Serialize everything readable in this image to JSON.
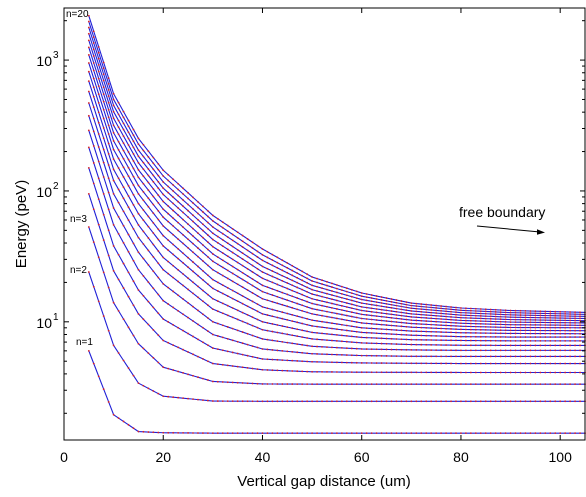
{
  "chart_data": {
    "type": "line",
    "title": "",
    "xlabel": "Vertical gap distance (um)",
    "ylabel": "Energy (peV)",
    "xlim": [
      0,
      105
    ],
    "ylim": [
      1.25,
      2500
    ],
    "y_scale": "log",
    "grid": false,
    "x_ticks": [
      "0",
      "20",
      "40",
      "60",
      "80",
      "100"
    ],
    "y_ticks": [
      {
        "base": "10",
        "exp": "1"
      },
      {
        "base": "10",
        "exp": "2"
      },
      {
        "base": "10",
        "exp": "3"
      }
    ],
    "level_labels": [
      "n=1",
      "n=2",
      "n=3",
      "n=20"
    ],
    "annotation": "free boundary",
    "colors": {
      "curve": "#1f1fd6",
      "marker": "#d6202a",
      "axis": "#000000"
    },
    "x": [
      5,
      10,
      15,
      20,
      30,
      40,
      50,
      60,
      70,
      80,
      90,
      105
    ],
    "series": [
      {
        "values": [
          6.0,
          1.95,
          1.45,
          1.42,
          1.41,
          1.41,
          1.41,
          1.41,
          1.41,
          1.41,
          1.41,
          1.41
        ]
      },
      {
        "values": [
          24.0,
          6.6,
          3.4,
          2.7,
          2.48,
          2.47,
          2.47,
          2.47,
          2.47,
          2.47,
          2.47,
          2.47
        ]
      },
      {
        "values": [
          53.0,
          14.0,
          6.8,
          4.5,
          3.5,
          3.35,
          3.34,
          3.34,
          3.34,
          3.34,
          3.34,
          3.34
        ]
      },
      {
        "values": [
          95.0,
          24.5,
          11.5,
          7.2,
          4.8,
          4.3,
          4.15,
          4.12,
          4.11,
          4.1,
          4.1,
          4.1
        ]
      },
      {
        "values": [
          150.0,
          38.0,
          17.5,
          10.5,
          6.3,
          5.2,
          4.95,
          4.85,
          4.82,
          4.8,
          4.8,
          4.8
        ]
      },
      {
        "values": [
          215.0,
          55.0,
          25.0,
          14.5,
          8.0,
          6.2,
          5.7,
          5.52,
          5.45,
          5.44,
          5.44,
          5.44
        ]
      },
      {
        "values": [
          290.0,
          74.0,
          34.0,
          19.5,
          10.0,
          7.4,
          6.5,
          6.2,
          6.1,
          6.05,
          6.05,
          6.05
        ]
      },
      {
        "values": [
          375.0,
          95.0,
          44.0,
          25.0,
          12.5,
          8.7,
          7.4,
          6.9,
          6.7,
          6.62,
          6.6,
          6.6
        ]
      },
      {
        "values": [
          470.0,
          120.0,
          55.0,
          31.0,
          15.0,
          10.0,
          8.3,
          7.6,
          7.3,
          7.2,
          7.15,
          7.15
        ]
      },
      {
        "values": [
          575.0,
          146.0,
          67.0,
          38.0,
          18.0,
          11.5,
          9.3,
          8.3,
          7.9,
          7.7,
          7.65,
          7.65
        ]
      },
      {
        "values": [
          690.0,
          175.0,
          80.0,
          45.5,
          21.0,
          13.0,
          10.3,
          9.0,
          8.5,
          8.25,
          8.15,
          8.1
        ]
      },
      {
        "values": [
          815.0,
          207.0,
          95.0,
          54.0,
          25.0,
          15.0,
          11.5,
          9.8,
          9.1,
          8.75,
          8.6,
          8.55
        ]
      },
      {
        "values": [
          950.0,
          241.0,
          110.0,
          63.0,
          29.0,
          17.0,
          12.6,
          10.6,
          9.7,
          9.25,
          9.05,
          9.0
        ]
      },
      {
        "values": [
          1095.0,
          278.0,
          127.0,
          72.5,
          33.0,
          19.0,
          13.8,
          11.4,
          10.3,
          9.75,
          9.5,
          9.4
        ]
      },
      {
        "values": [
          1250.0,
          317.0,
          145.0,
          83.0,
          37.5,
          21.5,
          15.0,
          12.2,
          10.9,
          10.25,
          9.95,
          9.8
        ]
      },
      {
        "values": [
          1415.0,
          359.0,
          164.0,
          94.0,
          42.5,
          24.0,
          16.3,
          13.0,
          11.5,
          10.75,
          10.4,
          10.2
        ]
      },
      {
        "values": [
          1590.0,
          403.0,
          184.0,
          105.0,
          47.5,
          26.5,
          17.6,
          13.9,
          12.1,
          11.25,
          10.85,
          10.6
        ]
      },
      {
        "values": [
          1775.0,
          450.0,
          205.0,
          117.0,
          53.0,
          29.5,
          19.0,
          14.8,
          12.7,
          11.75,
          11.3,
          11.0
        ]
      },
      {
        "values": [
          1970.0,
          500.0,
          228.0,
          130.0,
          59.0,
          32.5,
          20.5,
          15.7,
          13.3,
          12.25,
          11.75,
          11.4
        ]
      },
      {
        "values": [
          2180.0,
          553.0,
          252.0,
          144.0,
          65.0,
          36.0,
          22.0,
          16.6,
          13.9,
          12.75,
          12.2,
          11.8
        ]
      }
    ]
  }
}
